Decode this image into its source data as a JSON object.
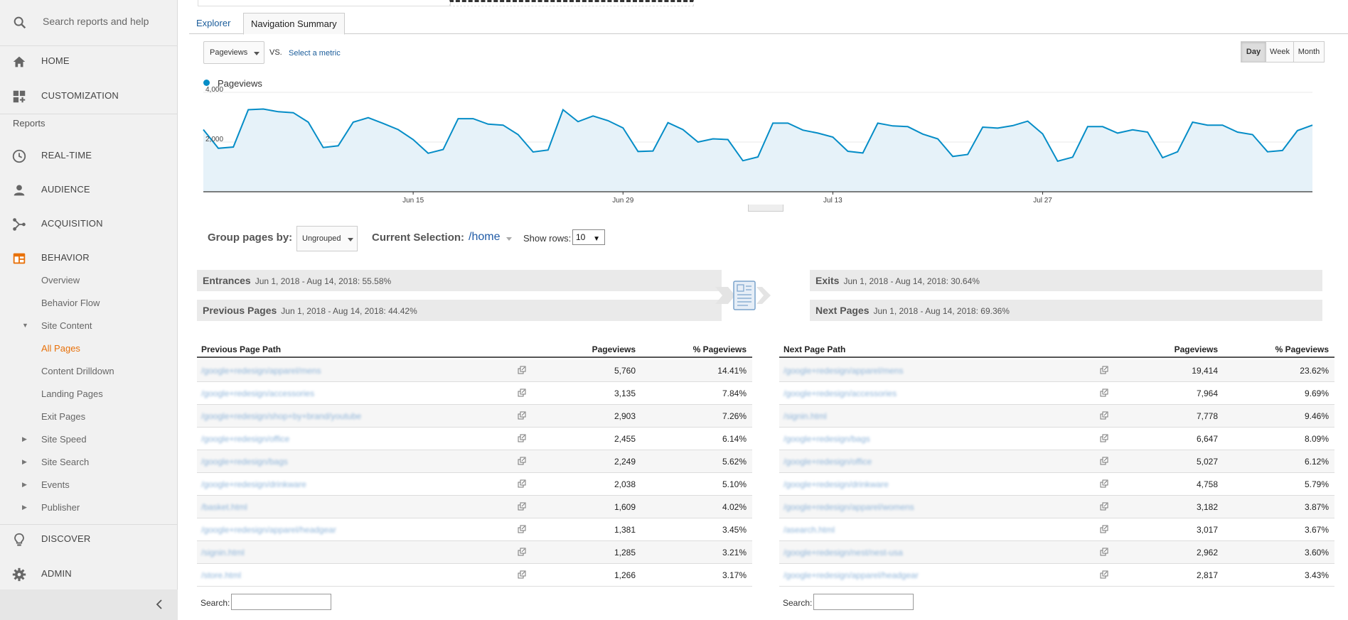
{
  "sidebar": {
    "search_placeholder": "Search reports and help",
    "home": "HOME",
    "customization": "CUSTOMIZATION",
    "reports_label": "Reports",
    "realtime": "REAL-TIME",
    "audience": "AUDIENCE",
    "acquisition": "ACQUISITION",
    "behavior": "BEHAVIOR",
    "behavior_sub": {
      "overview": "Overview",
      "behavior_flow": "Behavior Flow",
      "site_content": "Site Content",
      "all_pages": "All Pages",
      "content_drilldown": "Content Drilldown",
      "landing_pages": "Landing Pages",
      "exit_pages": "Exit Pages",
      "site_speed": "Site Speed",
      "site_search": "Site Search",
      "events": "Events",
      "publisher": "Publisher"
    },
    "discover": "DISCOVER",
    "admin": "ADMIN",
    "accent": "#e8710a"
  },
  "tabs": {
    "explorer": "Explorer",
    "navigation_summary": "Navigation Summary"
  },
  "metric": {
    "selected": "Pageviews",
    "vs": "VS.",
    "select_metric": "Select a metric"
  },
  "period": {
    "day": "Day",
    "week": "Week",
    "month": "Month",
    "active": "Day"
  },
  "chart_data": {
    "type": "area",
    "series": [
      {
        "name": "Pageviews",
        "color": "#058dc7",
        "values": [
          2500,
          1750,
          1800,
          3300,
          3330,
          3220,
          3180,
          2800,
          1780,
          1850,
          2800,
          2980,
          2750,
          2500,
          2100,
          1550,
          1700,
          2940,
          2940,
          2720,
          2680,
          2300,
          1600,
          1680,
          3300,
          2820,
          3050,
          2860,
          2570,
          1620,
          1640,
          2780,
          2500,
          2000,
          2130,
          2100,
          1250,
          1400,
          2760,
          2760,
          2480,
          2360,
          2200,
          1630,
          1560,
          2760,
          2650,
          2620,
          2320,
          2130,
          1420,
          1500,
          2600,
          2560,
          2660,
          2840,
          2330,
          1230,
          1390,
          2620,
          2620,
          2360,
          2490,
          2400,
          1370,
          1610,
          2800,
          2680,
          2680,
          2400,
          2300,
          1610,
          1660,
          2460,
          2680
        ]
      }
    ],
    "x_ticks": [
      "Jun 15",
      "Jun 29",
      "Jul 13",
      "Jul 27"
    ],
    "x_tick_index": [
      14,
      28,
      42,
      56
    ],
    "y_ticks": [
      2000,
      4000
    ],
    "y_tick_labels": [
      "2,000",
      "4,000"
    ],
    "ylim": [
      0,
      4000
    ],
    "grid": true
  },
  "grouping": {
    "group_label": "Group pages by:",
    "group_value": "Ungrouped",
    "current_label": "Current Selection:",
    "current_value": "/home",
    "rows_label": "Show rows:",
    "rows_value": "10"
  },
  "summary": {
    "entrances_label": "Entrances",
    "entrances_value": "Jun 1, 2018 - Aug 14, 2018: 55.58%",
    "previous_label": "Previous Pages",
    "previous_value": "Jun 1, 2018 - Aug 14, 2018: 44.42%",
    "exits_label": "Exits",
    "exits_value": "Jun 1, 2018 - Aug 14, 2018: 30.64%",
    "next_label": "Next Pages",
    "next_value": "Jun 1, 2018 - Aug 14, 2018: 69.36%"
  },
  "previous_table": {
    "headers": {
      "path": "Previous Page Path",
      "pageviews": "Pageviews",
      "pct": "% Pageviews"
    },
    "rows": [
      {
        "path": "/google+redesign/apparel/mens",
        "pageviews": "5,760",
        "pct": "14.41%"
      },
      {
        "path": "/google+redesign/accessories",
        "pageviews": "3,135",
        "pct": "7.84%"
      },
      {
        "path": "/google+redesign/shop+by+brand/youtube",
        "pageviews": "2,903",
        "pct": "7.26%"
      },
      {
        "path": "/google+redesign/office",
        "pageviews": "2,455",
        "pct": "6.14%"
      },
      {
        "path": "/google+redesign/bags",
        "pageviews": "2,249",
        "pct": "5.62%"
      },
      {
        "path": "/google+redesign/drinkware",
        "pageviews": "2,038",
        "pct": "5.10%"
      },
      {
        "path": "/basket.html",
        "pageviews": "1,609",
        "pct": "4.02%"
      },
      {
        "path": "/google+redesign/apparel/headgear",
        "pageviews": "1,381",
        "pct": "3.45%"
      },
      {
        "path": "/signin.html",
        "pageviews": "1,285",
        "pct": "3.21%"
      },
      {
        "path": "/store.html",
        "pageviews": "1,266",
        "pct": "3.17%"
      }
    ]
  },
  "next_table": {
    "headers": {
      "path": "Next Page Path",
      "pageviews": "Pageviews",
      "pct": "% Pageviews"
    },
    "rows": [
      {
        "path": "/google+redesign/apparel/mens",
        "pageviews": "19,414",
        "pct": "23.62%"
      },
      {
        "path": "/google+redesign/accessories",
        "pageviews": "7,964",
        "pct": "9.69%"
      },
      {
        "path": "/signin.html",
        "pageviews": "7,778",
        "pct": "9.46%"
      },
      {
        "path": "/google+redesign/bags",
        "pageviews": "6,647",
        "pct": "8.09%"
      },
      {
        "path": "/google+redesign/office",
        "pageviews": "5,027",
        "pct": "6.12%"
      },
      {
        "path": "/google+redesign/drinkware",
        "pageviews": "4,758",
        "pct": "5.79%"
      },
      {
        "path": "/google+redesign/apparel/womens",
        "pageviews": "3,182",
        "pct": "3.87%"
      },
      {
        "path": "/asearch.html",
        "pageviews": "3,017",
        "pct": "3.67%"
      },
      {
        "path": "/google+redesign/nest/nest-usa",
        "pageviews": "2,962",
        "pct": "3.60%"
      },
      {
        "path": "/google+redesign/apparel/headgear",
        "pageviews": "2,817",
        "pct": "3.43%"
      }
    ]
  },
  "search": {
    "label": "Search:"
  }
}
